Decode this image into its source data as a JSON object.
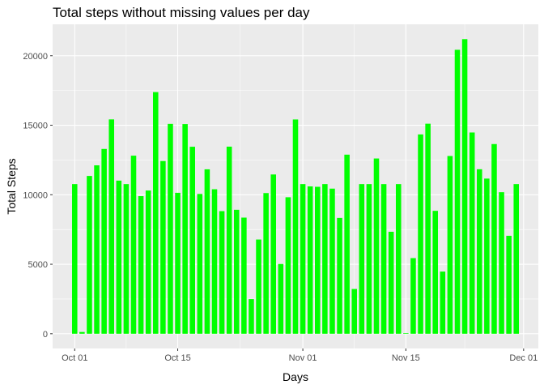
{
  "chart_data": {
    "type": "bar",
    "title": "Total steps without missing values per day",
    "xlabel": "Days",
    "ylabel": "Total Steps",
    "x_ticks": [
      "Oct 01",
      "Oct 15",
      "Nov 01",
      "Nov 15",
      "Dec 01"
    ],
    "y_ticks": [
      "0",
      "5000",
      "10000",
      "15000",
      "20000"
    ],
    "ylim": [
      -1060,
      22260
    ],
    "xlim": [
      "2012-09-28",
      "2012-12-03"
    ],
    "grid": true,
    "legend": "none",
    "colors": {
      "bar": "#00ff00",
      "panel": "#ebebeb",
      "grid": "#ffffff",
      "tick": "#333333"
    },
    "x": [
      "2012-10-01",
      "2012-10-02",
      "2012-10-03",
      "2012-10-04",
      "2012-10-05",
      "2012-10-06",
      "2012-10-07",
      "2012-10-08",
      "2012-10-09",
      "2012-10-10",
      "2012-10-11",
      "2012-10-12",
      "2012-10-13",
      "2012-10-14",
      "2012-10-15",
      "2012-10-16",
      "2012-10-17",
      "2012-10-18",
      "2012-10-19",
      "2012-10-20",
      "2012-10-21",
      "2012-10-22",
      "2012-10-23",
      "2012-10-24",
      "2012-10-25",
      "2012-10-26",
      "2012-10-27",
      "2012-10-28",
      "2012-10-29",
      "2012-10-30",
      "2012-10-31",
      "2012-11-01",
      "2012-11-02",
      "2012-11-03",
      "2012-11-04",
      "2012-11-05",
      "2012-11-06",
      "2012-11-07",
      "2012-11-08",
      "2012-11-09",
      "2012-11-10",
      "2012-11-11",
      "2012-11-12",
      "2012-11-13",
      "2012-11-14",
      "2012-11-15",
      "2012-11-16",
      "2012-11-17",
      "2012-11-18",
      "2012-11-19",
      "2012-11-20",
      "2012-11-21",
      "2012-11-22",
      "2012-11-23",
      "2012-11-24",
      "2012-11-25",
      "2012-11-26",
      "2012-11-27",
      "2012-11-28",
      "2012-11-29",
      "2012-11-30"
    ],
    "values": [
      10766,
      126,
      11352,
      12116,
      13294,
      15420,
      11015,
      10766,
      12811,
      9900,
      10304,
      17382,
      12426,
      15098,
      10139,
      15084,
      13452,
      10056,
      11829,
      10395,
      8821,
      13460,
      8918,
      8355,
      2492,
      6778,
      10119,
      11458,
      5018,
      9819,
      15414,
      10766,
      10600,
      10571,
      10766,
      10439,
      8334,
      12883,
      3219,
      10766,
      10766,
      12608,
      10765,
      7336,
      10766,
      41,
      5441,
      14339,
      15110,
      8841,
      4472,
      12787,
      20427,
      21194,
      14478,
      11834,
      11162,
      13646,
      10183,
      7047,
      10766
    ]
  }
}
